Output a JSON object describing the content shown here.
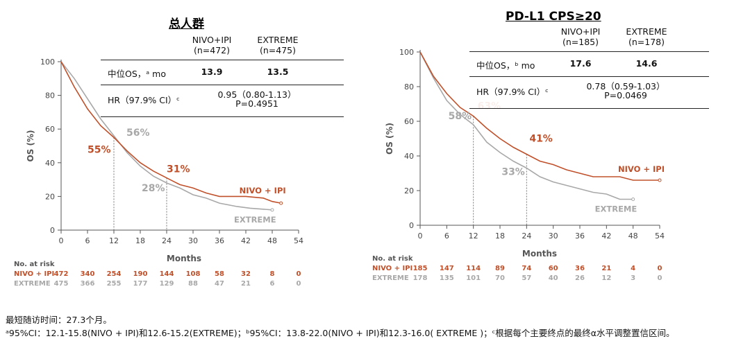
{
  "colors": {
    "nivo": "#c0502a",
    "extreme": "#a8a8a8",
    "axis": "#555"
  },
  "panels": [
    {
      "title": "总人群",
      "table": {
        "col1": "NIVO+IPI",
        "col1_n": "(n=472)",
        "col2": "EXTREME",
        "col2_n": "(n=475)",
        "row1_label": "中位OS，ᵃ mo",
        "row1_v1": "13.9",
        "row1_v2": "13.5",
        "row2_label": "HR（97.9% CI）ᶜ",
        "row2_v": "0.95（0.80-1.13）",
        "row2_p": "P=0.4951"
      },
      "risk": {
        "header": "No. at risk",
        "nivo_label": "NIVO + IPI",
        "extreme_label": "EXTREME",
        "nivo": [
          "472",
          "340",
          "254",
          "190",
          "144",
          "108",
          "58",
          "32",
          "8",
          "0"
        ],
        "extreme": [
          "475",
          "366",
          "255",
          "177",
          "129",
          "88",
          "47",
          "21",
          "6",
          "0"
        ]
      }
    },
    {
      "title": "PD-L1 CPS≥20",
      "table": {
        "col1": "NIVO+IPI",
        "col1_n": "(n=185)",
        "col2": "EXTREME",
        "col2_n": "(n=178)",
        "row1_label": "中位OS，ᵇ mo",
        "row1_v1": "17.6",
        "row1_v2": "14.6",
        "row2_label": "HR（97.9% CI）ᶜ",
        "row2_v": "0.78（0.59-1.03）",
        "row2_p": "P=0.0469"
      },
      "risk": {
        "header": "No. at risk",
        "nivo_label": "NIVO + IPI",
        "extreme_label": "EXTREME",
        "nivo": [
          "185",
          "147",
          "114",
          "89",
          "74",
          "60",
          "36",
          "21",
          "4",
          "0"
        ],
        "extreme": [
          "178",
          "135",
          "101",
          "70",
          "57",
          "40",
          "26",
          "12",
          "3",
          "0"
        ]
      }
    }
  ],
  "chart_data": [
    {
      "type": "line",
      "title": "总人群",
      "xlabel": "Months",
      "ylabel": "OS (%)",
      "xlim": [
        0,
        54
      ],
      "ylim": [
        0,
        100
      ],
      "xticks": [
        "0",
        "6",
        "12",
        "18",
        "24",
        "30",
        "36",
        "42",
        "48",
        "54"
      ],
      "yticks": [
        "0",
        "20",
        "40",
        "60",
        "80",
        "100"
      ],
      "series": [
        {
          "name": "NIVO + IPI",
          "points": [
            [
              0,
              100
            ],
            [
              3,
              85
            ],
            [
              6,
              72
            ],
            [
              9,
              62
            ],
            [
              12,
              55
            ],
            [
              15,
              47
            ],
            [
              18,
              40
            ],
            [
              21,
              35
            ],
            [
              24,
              31
            ],
            [
              27,
              27
            ],
            [
              30,
              25
            ],
            [
              33,
              22
            ],
            [
              36,
              20
            ],
            [
              42,
              20
            ],
            [
              46,
              19
            ],
            [
              48,
              17
            ],
            [
              50,
              16
            ]
          ]
        },
        {
          "name": "EXTREME",
          "points": [
            [
              0,
              100
            ],
            [
              3,
              90
            ],
            [
              6,
              78
            ],
            [
              9,
              66
            ],
            [
              12,
              56
            ],
            [
              15,
              46
            ],
            [
              18,
              38
            ],
            [
              21,
              32
            ],
            [
              24,
              28
            ],
            [
              27,
              25
            ],
            [
              30,
              21
            ],
            [
              33,
              19
            ],
            [
              36,
              16
            ],
            [
              40,
              14
            ],
            [
              43,
              13
            ],
            [
              48,
              12
            ]
          ]
        }
      ],
      "annotations": [
        {
          "text": "55%",
          "series": "NIVO + IPI",
          "x": 12,
          "y": 55
        },
        {
          "text": "56%",
          "series": "EXTREME",
          "x": 12,
          "y": 56
        },
        {
          "text": "31%",
          "series": "NIVO + IPI",
          "x": 24,
          "y": 31
        },
        {
          "text": "28%",
          "series": "EXTREME",
          "x": 24,
          "y": 28
        }
      ]
    },
    {
      "type": "line",
      "title": "PD-L1 CPS≥20",
      "xlabel": "Months",
      "ylabel": "OS (%)",
      "xlim": [
        0,
        54
      ],
      "ylim": [
        0,
        100
      ],
      "xticks": [
        "0",
        "6",
        "12",
        "18",
        "24",
        "30",
        "36",
        "42",
        "48",
        "54"
      ],
      "yticks": [
        "0",
        "20",
        "40",
        "60",
        "80",
        "100"
      ],
      "series": [
        {
          "name": "NIVO + IPI",
          "points": [
            [
              0,
              100
            ],
            [
              3,
              86
            ],
            [
              6,
              76
            ],
            [
              9,
              68
            ],
            [
              12,
              63
            ],
            [
              15,
              56
            ],
            [
              18,
              50
            ],
            [
              21,
              45
            ],
            [
              24,
              41
            ],
            [
              27,
              37
            ],
            [
              30,
              35
            ],
            [
              33,
              32
            ],
            [
              36,
              30
            ],
            [
              39,
              28
            ],
            [
              45,
              28
            ],
            [
              48,
              26
            ],
            [
              54,
              26
            ]
          ]
        },
        {
          "name": "EXTREME",
          "points": [
            [
              0,
              100
            ],
            [
              3,
              85
            ],
            [
              6,
              72
            ],
            [
              9,
              64
            ],
            [
              12,
              58
            ],
            [
              15,
              48
            ],
            [
              18,
              42
            ],
            [
              21,
              37
            ],
            [
              24,
              33
            ],
            [
              27,
              28
            ],
            [
              30,
              25
            ],
            [
              33,
              23
            ],
            [
              36,
              21
            ],
            [
              39,
              19
            ],
            [
              42,
              18
            ],
            [
              45,
              15
            ],
            [
              48,
              15
            ]
          ]
        }
      ],
      "annotations": [
        {
          "text": "63%",
          "series": "NIVO + IPI",
          "x": 12,
          "y": 63
        },
        {
          "text": "58%",
          "series": "EXTREME",
          "x": 12,
          "y": 58
        },
        {
          "text": "41%",
          "series": "NIVO + IPI",
          "x": 24,
          "y": 41
        },
        {
          "text": "33%",
          "series": "EXTREME",
          "x": 24,
          "y": 33
        }
      ]
    }
  ],
  "footnotes": {
    "line1": "最短随访时间：27.3个月。",
    "line2": "ᵃ95%CI：12.1-15.8(NIVO + IPI)和12.6-15.2(EXTREME)；ᵇ95%CI：13.8-22.0(NIVO + IPI)和12.3-16.0( EXTREME )；ᶜ根据每个主要终点的最终α水平调整置信区间。"
  }
}
